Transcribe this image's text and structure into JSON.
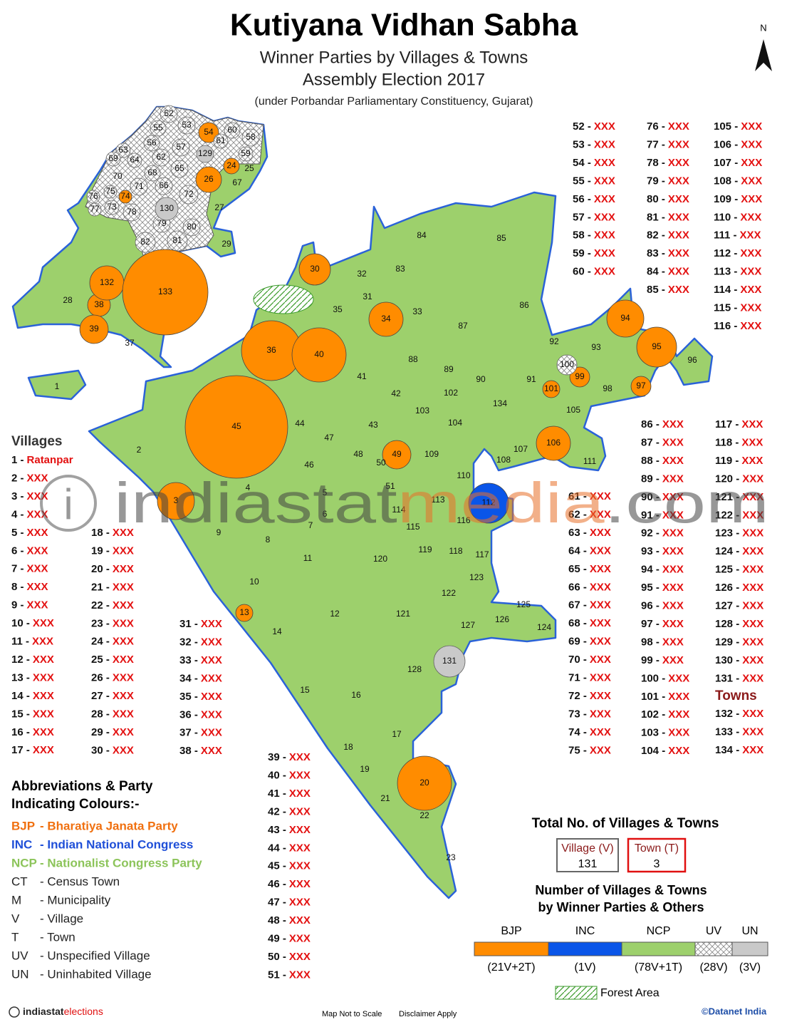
{
  "header": {
    "title": "Kutiyana Vidhan Sabha",
    "subtitle": "Winner Parties by Villages & Towns",
    "election": "Assembly Election 2017",
    "note": "(under Porbandar Parliamentary Constituency, Gujarat)"
  },
  "north": "N",
  "villages_heading": "Villages",
  "towns_heading": "Towns",
  "list": {
    "labels": [
      "1 -",
      "2 -",
      "3 -",
      "4 -",
      "5 -",
      "6 -",
      "7 -",
      "8 -",
      "9 -",
      "10 -",
      "11 -",
      "12 -",
      "13 -",
      "14 -",
      "15 -",
      "16 -",
      "17 -",
      "18 -",
      "19 -",
      "20 -",
      "21 -",
      "22 -",
      "23 -",
      "24 -",
      "25 -",
      "26 -",
      "27 -",
      "28 -",
      "29 -",
      "30 -",
      "31 -",
      "32 -",
      "33 -",
      "34 -",
      "35 -",
      "36 -",
      "37 -",
      "38 -",
      "39 -",
      "40 -",
      "41 -",
      "42 -",
      "43 -",
      "44 -",
      "45 -",
      "46 -",
      "47 -",
      "48 -",
      "49 -",
      "50 -",
      "51 -",
      "52 -",
      "53 -",
      "54 -",
      "55 -",
      "56 -",
      "57 -",
      "58 -",
      "59 -",
      "60 -",
      "61 -",
      "62 -",
      "63 -",
      "64 -",
      "65 -",
      "66 -",
      "67 -",
      "68 -",
      "69 -",
      "70 -",
      "71 -",
      "72 -",
      "73 -",
      "74 -",
      "75 -",
      "76 -",
      "77 -",
      "78 -",
      "79 -",
      "80 -",
      "81 -",
      "82 -",
      "83 -",
      "84 -",
      "85 -",
      "86 -",
      "87 -",
      "88 -",
      "89 -",
      "90 -",
      "91 -",
      "92 -",
      "93 -",
      "94 -",
      "95 -",
      "96 -",
      "97 -",
      "98 -",
      "99 -",
      "100 -",
      "101 -",
      "102 -",
      "103 -",
      "104 -",
      "105 -",
      "106 -",
      "107 -",
      "108 -",
      "109 -",
      "110 -",
      "111 -",
      "112 -",
      "113 -",
      "114 -",
      "115 -",
      "116 -",
      "117 -",
      "118 -",
      "119 -",
      "120 -",
      "121 -",
      "122 -",
      "123 -",
      "124 -",
      "125 -",
      "126 -",
      "127 -",
      "128 -",
      "129 -",
      "130 -",
      "131 -",
      "132 -",
      "133 -",
      "134 -"
    ],
    "names": [
      "Ratanpar",
      "XXX",
      "XXX",
      "XXX",
      "XXX",
      "XXX",
      "XXX",
      "XXX",
      "XXX",
      "XXX",
      "XXX",
      "XXX",
      "XXX",
      "XXX",
      "XXX",
      "XXX",
      "XXX",
      "XXX",
      "XXX",
      "XXX",
      "XXX",
      "XXX",
      "XXX",
      "XXX",
      "XXX",
      "XXX",
      "XXX",
      "XXX",
      "XXX",
      "XXX",
      "XXX",
      "XXX",
      "XXX",
      "XXX",
      "XXX",
      "XXX",
      "XXX",
      "XXX",
      "XXX",
      "XXX",
      "XXX",
      "XXX",
      "XXX",
      "XXX",
      "XXX",
      "XXX",
      "XXX",
      "XXX",
      "XXX",
      "XXX",
      "XXX",
      "XXX",
      "XXX",
      "XXX",
      "XXX",
      "XXX",
      "XXX",
      "XXX",
      "XXX",
      "XXX",
      "XXX",
      "XXX",
      "XXX",
      "XXX",
      "XXX",
      "XXX",
      "XXX",
      "XXX",
      "XXX",
      "XXX",
      "XXX",
      "XXX",
      "XXX",
      "XXX",
      "XXX",
      "XXX",
      "XXX",
      "XXX",
      "XXX",
      "XXX",
      "XXX",
      "XXX",
      "XXX",
      "XXX",
      "XXX",
      "XXX",
      "XXX",
      "XXX",
      "XXX",
      "XXX",
      "XXX",
      "XXX",
      "XXX",
      "XXX",
      "XXX",
      "XXX",
      "XXX",
      "XXX",
      "XXX",
      "XXX",
      "XXX",
      "XXX",
      "XXX",
      "XXX",
      "XXX",
      "XXX",
      "XXX",
      "XXX",
      "XXX",
      "XXX",
      "XXX",
      "XXX",
      "XXX",
      "XXX",
      "XXX",
      "XXX",
      "XXX",
      "XXX",
      "XXX",
      "XXX",
      "XXX",
      "XXX",
      "XXX",
      "XXX",
      "XXX",
      "XXX",
      "XXX",
      "XXX",
      "XXX",
      "XXX",
      "XXX",
      "XXX",
      "XXX",
      "XXX"
    ]
  },
  "map": {
    "labels": [
      "1",
      "2",
      "3",
      "4",
      "5",
      "6",
      "7",
      "8",
      "9",
      "10",
      "11",
      "12",
      "13",
      "14",
      "15",
      "16",
      "17",
      "18",
      "19",
      "20",
      "21",
      "22",
      "23",
      "24",
      "25",
      "26",
      "27",
      "28",
      "29",
      "30",
      "31",
      "32",
      "33",
      "34",
      "35",
      "36",
      "37",
      "38",
      "39",
      "40",
      "41",
      "42",
      "43",
      "44",
      "45",
      "46",
      "47",
      "48",
      "49",
      "50",
      "51",
      "52",
      "53",
      "54",
      "55",
      "56",
      "57",
      "58",
      "59",
      "60",
      "61",
      "62",
      "63",
      "64",
      "65",
      "66",
      "67",
      "68",
      "69",
      "70",
      "71",
      "72",
      "73",
      "74",
      "75",
      "76",
      "77",
      "78",
      "79",
      "80",
      "81",
      "82",
      "83",
      "84",
      "85",
      "86",
      "87",
      "88",
      "89",
      "90",
      "91",
      "92",
      "93",
      "94",
      "95",
      "96",
      "97",
      "98",
      "99",
      "100",
      "101",
      "102",
      "103",
      "104",
      "105",
      "106",
      "107",
      "108",
      "109",
      "110",
      "111",
      "112",
      "113",
      "114",
      "115",
      "116",
      "117",
      "118",
      "119",
      "120",
      "121",
      "122",
      "123",
      "124",
      "125",
      "126",
      "127",
      "128",
      "129",
      "130",
      "131",
      "132",
      "133",
      "134"
    ],
    "parties": [
      "NCP",
      "NCP",
      "BJP",
      "NCP",
      "NCP",
      "NCP",
      "NCP",
      "NCP",
      "NCP",
      "NCP",
      "NCP",
      "NCP",
      "BJP",
      "NCP",
      "NCP",
      "NCP",
      "NCP",
      "NCP",
      "NCP",
      "BJP",
      "NCP",
      "NCP",
      "NCP",
      "BJP",
      "NCP",
      "BJP",
      "NCP",
      "NCP",
      "NCP",
      "BJP",
      "NCP",
      "NCP",
      "NCP",
      "BJP",
      "NCP",
      "BJP",
      "NCP",
      "BJP",
      "BJP",
      "BJP",
      "NCP",
      "NCP",
      "NCP",
      "NCP",
      "BJP",
      "NCP",
      "NCP",
      "NCP",
      "BJP",
      "NCP",
      "NCP",
      "UV",
      "UV",
      "BJP",
      "UV",
      "UV",
      "UV",
      "UV",
      "UV",
      "UV",
      "UV",
      "UV",
      "UV",
      "UV",
      "UV",
      "UV",
      "NCP",
      "UV",
      "UV",
      "NCP",
      "UV",
      "UV",
      "UV",
      "BJP",
      "UV",
      "UV",
      "UV",
      "UV",
      "UV",
      "UV",
      "UV",
      "UV",
      "NCP",
      "NCP",
      "NCP",
      "NCP",
      "NCP",
      "NCP",
      "NCP",
      "NCP",
      "NCP",
      "NCP",
      "NCP",
      "BJP",
      "BJP",
      "NCP",
      "BJP",
      "NCP",
      "BJP",
      "UV",
      "BJP",
      "NCP",
      "NCP",
      "NCP",
      "NCP",
      "BJP",
      "NCP",
      "NCP",
      "NCP",
      "NCP",
      "NCP",
      "INC",
      "NCP",
      "NCP",
      "NCP",
      "NCP",
      "NCP",
      "NCP",
      "NCP",
      "NCP",
      "NCP",
      "NCP",
      "NCP",
      "NCP",
      "NCP",
      "NCP",
      "NCP",
      "NCP",
      "UN",
      "UN",
      "UN",
      "BJP",
      "BJP",
      "NCP"
    ]
  },
  "abbreviations": {
    "heading": [
      "Abbreviations & Party",
      "Indicating Colours:-"
    ],
    "items": [
      {
        "abbr": "BJP",
        "desc": "- Bharatiya Janata Party",
        "color": "#f07010"
      },
      {
        "abbr": "INC",
        "desc": "- Indian National Congress",
        "color": "#1f4fd8"
      },
      {
        "abbr": "NCP",
        "desc": "- Nationalist Congress Party",
        "color": "#8cc45a"
      },
      {
        "abbr": "CT",
        "desc": "- Census Town",
        "color": "#222222"
      },
      {
        "abbr": "M",
        "desc": "- Municipality",
        "color": "#222222"
      },
      {
        "abbr": "V",
        "desc": "- Village",
        "color": "#222222"
      },
      {
        "abbr": "T",
        "desc": "- Town",
        "color": "#222222"
      },
      {
        "abbr": "UV",
        "desc": "- Unspecified Village",
        "color": "#222222"
      },
      {
        "abbr": "UN",
        "desc": "- Uninhabited Village",
        "color": "#222222"
      }
    ]
  },
  "totals": {
    "heading": "Total No. of Villages & Towns",
    "village_label": "Village (V)",
    "village_count": "131",
    "town_label": "Town (T)",
    "town_count": "3"
  },
  "party_counts": {
    "heading": [
      "Number of Villages & Towns",
      "by Winner Parties & Others"
    ],
    "segments": [
      {
        "party": "BJP",
        "count": "(21V+2T)",
        "color": "#ff8c00"
      },
      {
        "party": "INC",
        "count": "(1V)",
        "color": "#0a55e8"
      },
      {
        "party": "NCP",
        "count": "(78V+1T)",
        "color": "#9dd06c"
      },
      {
        "party": "UV",
        "count": "(28V)",
        "color": "hatch"
      },
      {
        "party": "UN",
        "count": "(3V)",
        "color": "#c9c9c9"
      }
    ]
  },
  "forest": "Forest Area",
  "watermark": [
    "i",
    "indiastat",
    "media",
    ".com"
  ],
  "footer": {
    "brand": [
      "indiastat",
      "elections"
    ],
    "scale": "Map Not to Scale",
    "disclaimer": "Disclaimer Apply",
    "credit": "©Datanet India"
  }
}
